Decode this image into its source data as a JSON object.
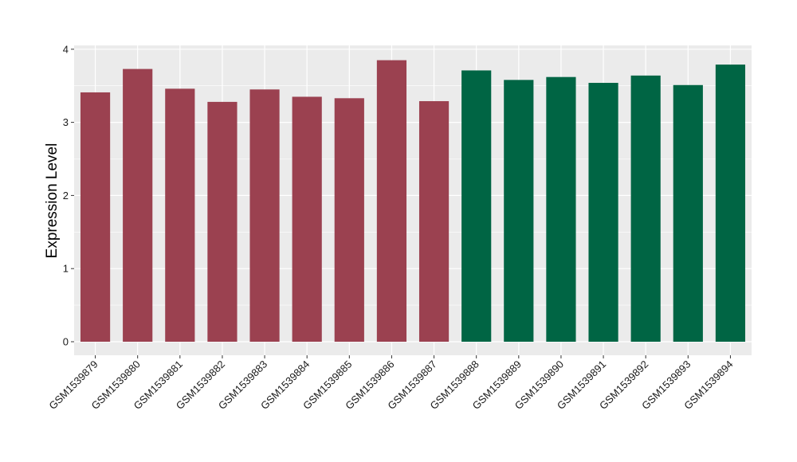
{
  "chart_data": {
    "type": "bar",
    "title": "",
    "xlabel": "",
    "ylabel": "Expression Level",
    "ylim": [
      0,
      4.05
    ],
    "yticks": [
      0,
      1,
      2,
      3,
      4
    ],
    "grid": true,
    "background": "#EBEBEB",
    "grid_color": "#FFFFFF",
    "categories": [
      "GSM1539879",
      "GSM1539880",
      "GSM1539881",
      "GSM1539882",
      "GSM1539883",
      "GSM1539884",
      "GSM1539885",
      "GSM1539886",
      "GSM1539887",
      "GSM1539888",
      "GSM1539889",
      "GSM1539890",
      "GSM1539891",
      "GSM1539892",
      "GSM1539893",
      "GSM1539894"
    ],
    "values": [
      3.41,
      3.73,
      3.46,
      3.28,
      3.45,
      3.35,
      3.33,
      3.85,
      3.29,
      3.71,
      3.58,
      3.62,
      3.54,
      3.64,
      3.51,
      3.79
    ],
    "groups": [
      1,
      1,
      1,
      1,
      1,
      1,
      1,
      1,
      1,
      2,
      2,
      2,
      2,
      2,
      2,
      2
    ],
    "group_colors": {
      "1": "#9B4150",
      "2": "#006544"
    }
  }
}
